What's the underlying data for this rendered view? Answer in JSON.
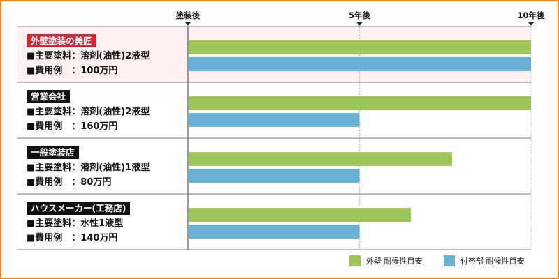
{
  "chart_data": {
    "type": "bar",
    "orientation": "horizontal",
    "x_ticks": [
      {
        "value": 0,
        "label": "塗装後"
      },
      {
        "value": 5,
        "label": "5年後"
      },
      {
        "value": 10,
        "label": "10年後"
      }
    ],
    "xlim": [
      0,
      10
    ],
    "categories": [
      {
        "name": "外壁塗装の美匠",
        "paint": "■主要塗料：溶剤(油性)2液型",
        "cost": "■費用例　：100万円",
        "badge_color": "#cc2a3a",
        "highlight": true
      },
      {
        "name": "営業会社",
        "paint": "■主要塗料：溶剤(油性)2液型",
        "cost": "■費用例　：160万円",
        "badge_color": "#111111",
        "highlight": false
      },
      {
        "name": "一般塗装店",
        "paint": "■主要塗料：溶剤(油性)1液型",
        "cost": "■費用例　：80万円",
        "badge_color": "#111111",
        "highlight": false
      },
      {
        "name": "ハウスメーカー(工務店)",
        "paint": "■主要塗料：水性1液型",
        "cost": "■費用例　：140万円",
        "badge_color": "#111111",
        "highlight": false
      }
    ],
    "series": [
      {
        "name": "外壁 耐候性目安",
        "color": "#9dc55a",
        "values": [
          10,
          10,
          7.7,
          6.5
        ]
      },
      {
        "name": "付帯部 耐候性目安",
        "color": "#6ab1d6",
        "values": [
          10,
          5,
          5,
          5
        ]
      }
    ],
    "highlight_color": "#fdf0f0",
    "grid": true
  }
}
